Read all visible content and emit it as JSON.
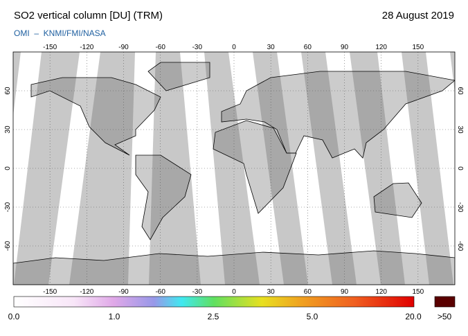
{
  "header": {
    "title": "SO2 vertical column [DU] (TRM)",
    "date": "28 August 2019",
    "source": "OMI  –  KNMI/FMI/NASA"
  },
  "map": {
    "xlim": [
      -180,
      180
    ],
    "ylim": [
      -90,
      90
    ],
    "lon_ticks": [
      -150,
      -120,
      -90,
      -60,
      -30,
      0,
      30,
      60,
      90,
      120,
      150
    ],
    "lat_ticks": [
      -60,
      -30,
      0,
      30,
      60
    ]
  },
  "colorbar": {
    "labels": [
      "0.0",
      "1.0",
      "2.5",
      "5.0",
      "20.0",
      ">50"
    ]
  }
}
